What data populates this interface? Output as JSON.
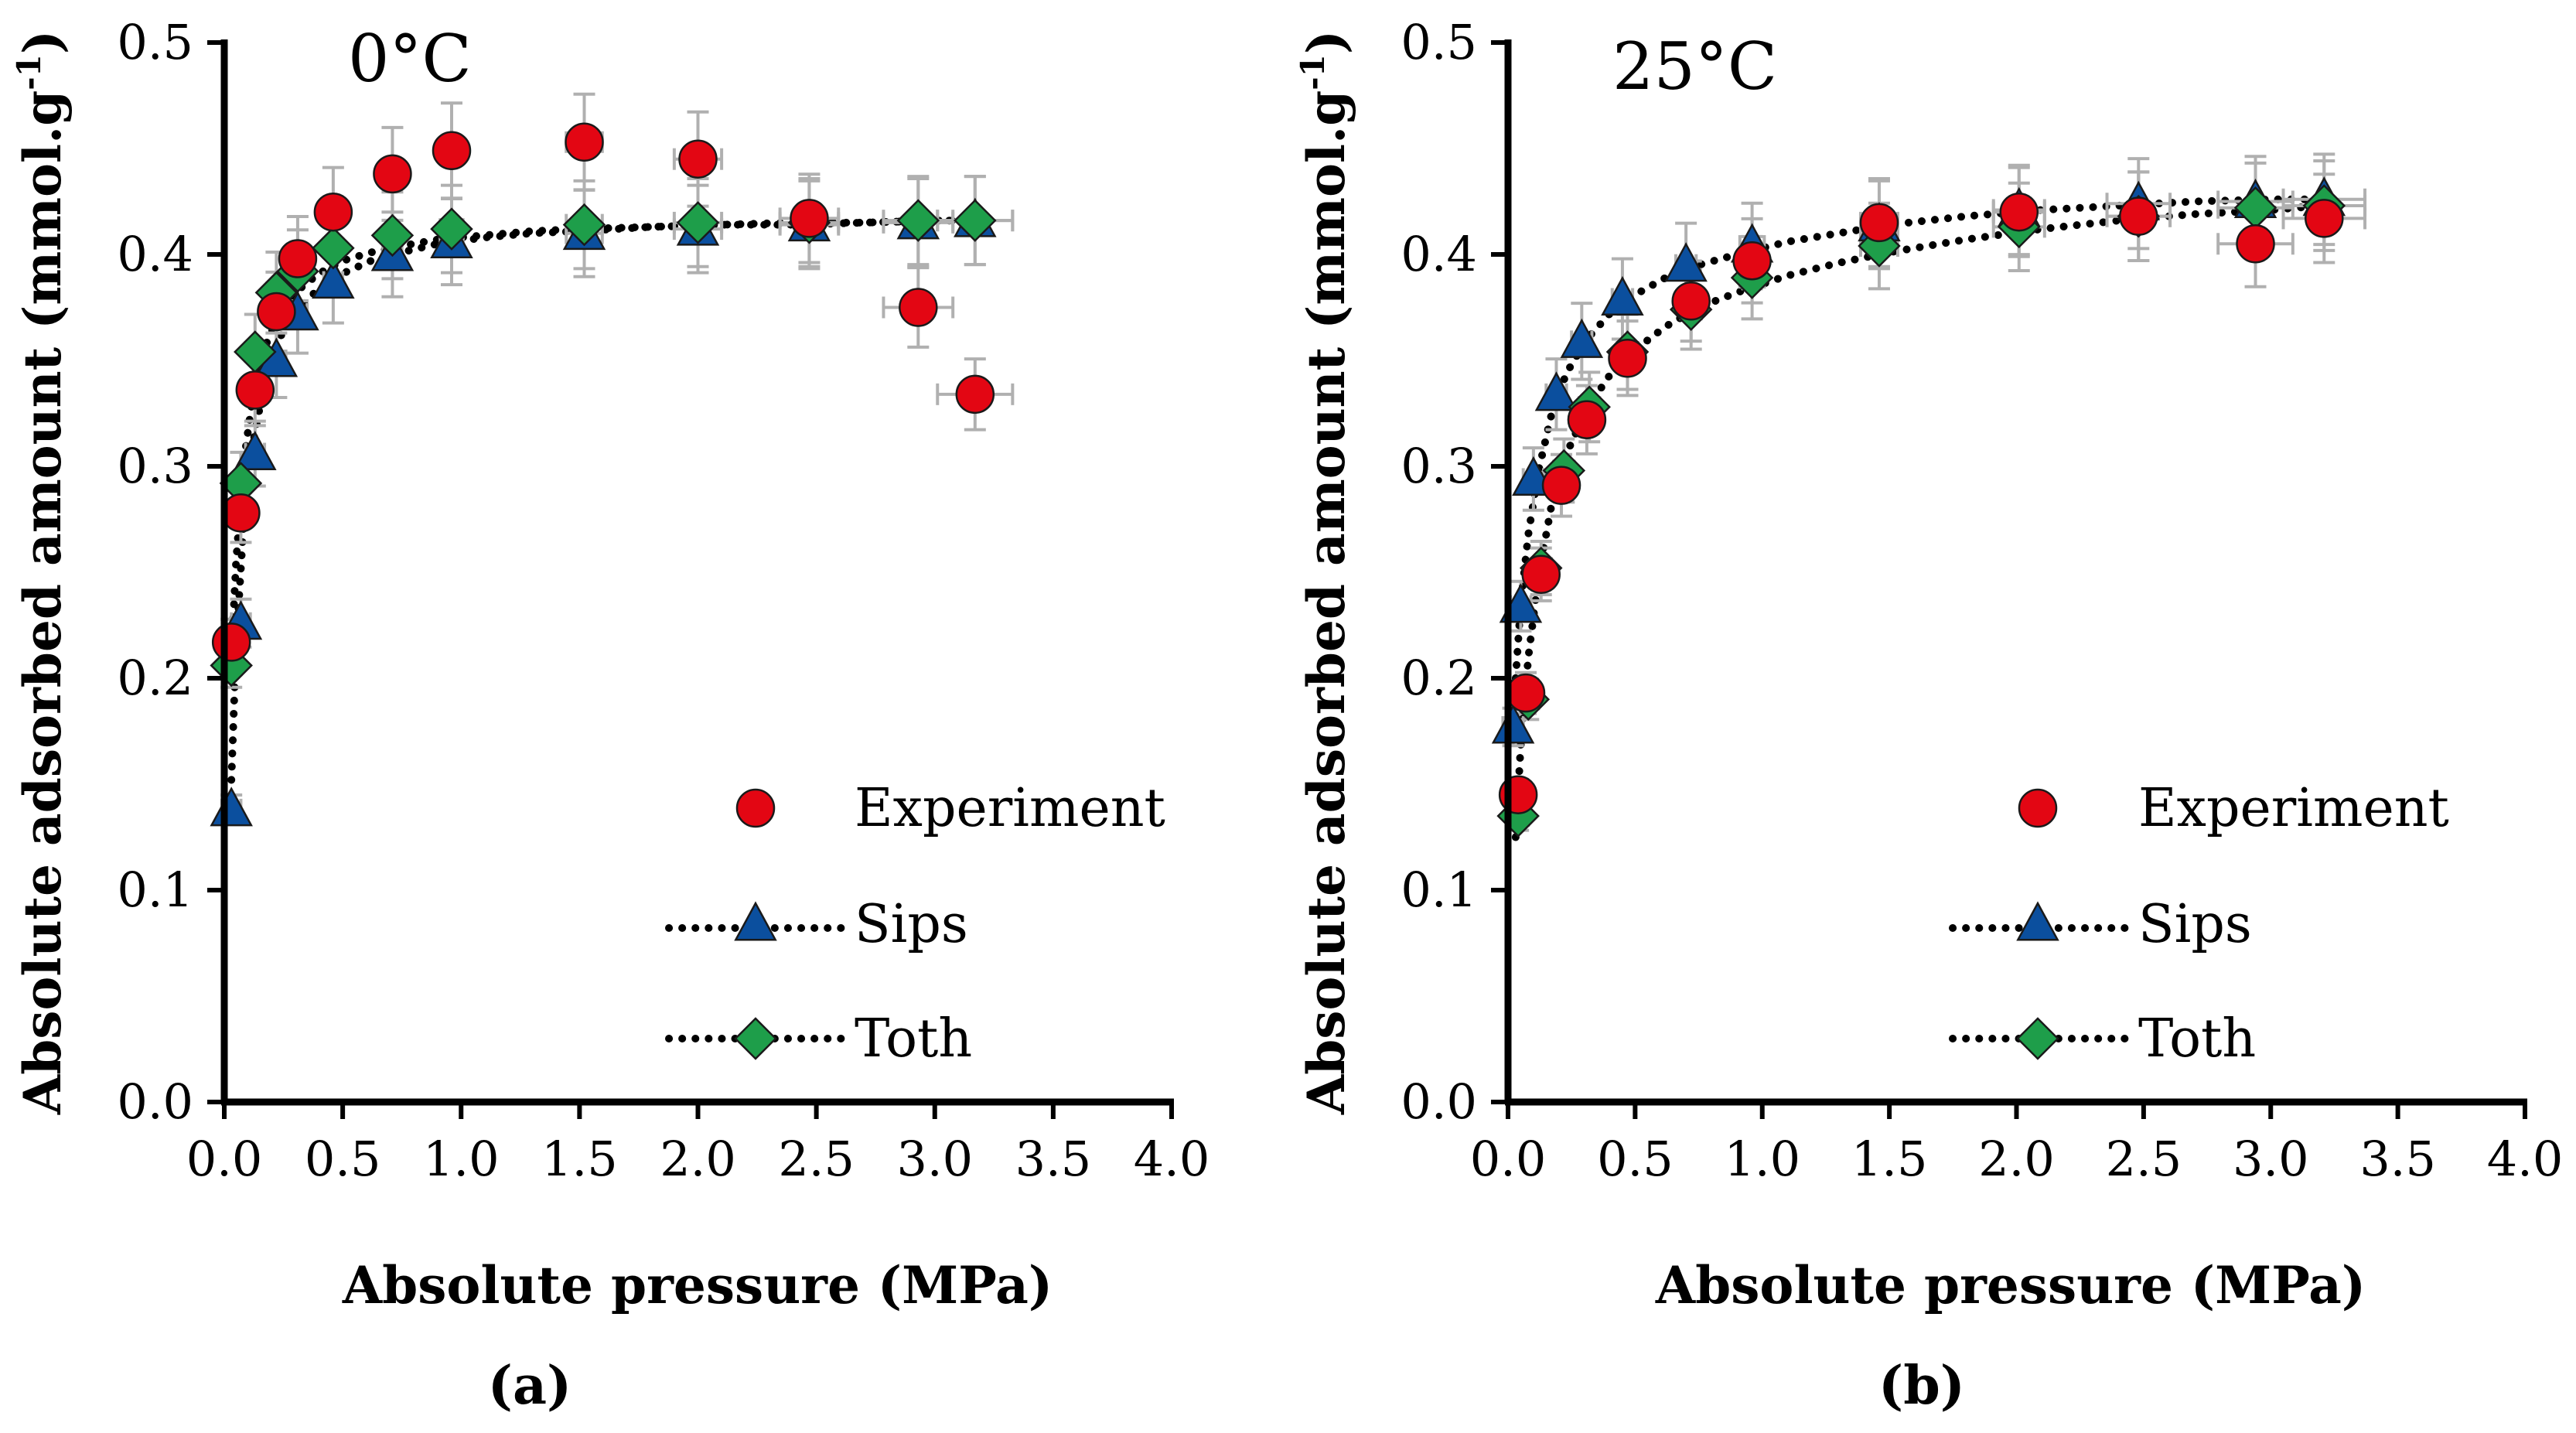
{
  "chart_data": [
    {
      "type": "scatter",
      "panel_label": "(a)",
      "temperature_label": "0°C",
      "xlabel": "Absolute pressure (MPa)",
      "ylabel": "Absolute adsorbed amount (mmol.g",
      "ylabel_sup": "-1",
      "ylabel_close": ")",
      "xlim": [
        0,
        4
      ],
      "ylim": [
        0,
        0.5
      ],
      "xticks": [
        "0.0",
        "0.5",
        "1.0",
        "1.5",
        "2.0",
        "2.5",
        "3.0",
        "3.5",
        "4.0"
      ],
      "yticks": [
        "0.0",
        "0.1",
        "0.2",
        "0.3",
        "0.4",
        "0.5"
      ],
      "legend": [
        "Experiment",
        "Sips",
        "Toth"
      ],
      "series": [
        {
          "name": "Experiment",
          "marker": "circle",
          "color": "#e30613",
          "x": [
            0.03,
            0.07,
            0.13,
            0.22,
            0.31,
            0.46,
            0.71,
            0.96,
            1.52,
            2.0,
            2.47,
            2.93,
            3.17
          ],
          "y": [
            0.217,
            0.278,
            0.336,
            0.373,
            0.398,
            0.42,
            0.438,
            0.449,
            0.453,
            0.445,
            0.417,
            0.375,
            0.334
          ]
        },
        {
          "name": "Sips",
          "marker": "triangle",
          "color": "#0b4f9e",
          "x": [
            0.03,
            0.07,
            0.13,
            0.22,
            0.31,
            0.46,
            0.71,
            0.96,
            1.52,
            2.0,
            2.47,
            2.93,
            3.17
          ],
          "y": [
            0.138,
            0.226,
            0.306,
            0.35,
            0.372,
            0.387,
            0.4,
            0.406,
            0.41,
            0.412,
            0.414,
            0.415,
            0.416
          ]
        },
        {
          "name": "Toth",
          "marker": "diamond",
          "color": "#1e9e4a",
          "x": [
            0.03,
            0.07,
            0.13,
            0.22,
            0.31,
            0.46,
            0.71,
            0.96,
            1.52,
            2.0,
            2.47,
            2.93,
            3.17
          ],
          "y": [
            0.206,
            0.292,
            0.354,
            0.382,
            0.392,
            0.403,
            0.409,
            0.412,
            0.414,
            0.415,
            0.415,
            0.416,
            0.416
          ]
        }
      ],
      "fit_x": [
        0.03,
        0.05,
        0.08,
        0.12,
        0.17,
        0.23,
        0.31,
        0.4,
        0.5,
        0.62,
        0.75,
        0.9,
        1.1,
        1.3,
        1.5,
        1.8,
        2.1,
        2.4,
        2.7,
        3.0,
        3.2
      ],
      "fit_sips": [
        0.152,
        0.215,
        0.27,
        0.31,
        0.34,
        0.36,
        0.374,
        0.384,
        0.391,
        0.397,
        0.401,
        0.405,
        0.408,
        0.41,
        0.411,
        0.413,
        0.414,
        0.414,
        0.415,
        0.416,
        0.416
      ],
      "fit_toth": [
        0.21,
        0.255,
        0.3,
        0.333,
        0.356,
        0.371,
        0.383,
        0.391,
        0.397,
        0.401,
        0.404,
        0.407,
        0.409,
        0.411,
        0.412,
        0.413,
        0.414,
        0.415,
        0.415,
        0.416,
        0.416
      ]
    },
    {
      "type": "scatter",
      "panel_label": "(b)",
      "temperature_label": "25°C",
      "xlabel": "Absolute pressure (MPa)",
      "ylabel": "Absolute adsorbed amount (mmol.g",
      "ylabel_sup": "-1",
      "ylabel_close": ")",
      "xlim": [
        0,
        4
      ],
      "ylim": [
        0,
        0.5
      ],
      "xticks": [
        "0.0",
        "0.5",
        "1.0",
        "1.5",
        "2.0",
        "2.5",
        "3.0",
        "3.5",
        "4.0"
      ],
      "yticks": [
        "0.0",
        "0.1",
        "0.2",
        "0.3",
        "0.4",
        "0.5"
      ],
      "legend": [
        "Experiment",
        "Sips",
        "Toth"
      ],
      "series": [
        {
          "name": "Experiment",
          "marker": "circle",
          "color": "#e30613",
          "x": [
            0.04,
            0.07,
            0.13,
            0.21,
            0.31,
            0.47,
            0.72,
            0.96,
            1.46,
            2.01,
            2.48,
            2.94,
            3.21
          ],
          "y": [
            0.145,
            0.193,
            0.249,
            0.291,
            0.322,
            0.351,
            0.378,
            0.397,
            0.415,
            0.42,
            0.418,
            0.405,
            0.417
          ]
        },
        {
          "name": "Sips",
          "marker": "triangle",
          "color": "#0b4f9e",
          "x": [
            0.02,
            0.05,
            0.1,
            0.19,
            0.29,
            0.45,
            0.7,
            0.96,
            1.46,
            2.01,
            2.48,
            2.94,
            3.21
          ],
          "y": [
            0.177,
            0.234,
            0.294,
            0.334,
            0.359,
            0.379,
            0.395,
            0.404,
            0.414,
            0.421,
            0.424,
            0.425,
            0.426
          ]
        },
        {
          "name": "Toth",
          "marker": "diamond",
          "color": "#1e9e4a",
          "x": [
            0.04,
            0.08,
            0.13,
            0.22,
            0.32,
            0.47,
            0.72,
            0.96,
            1.46,
            2.01,
            2.48,
            2.94,
            3.21
          ],
          "y": [
            0.135,
            0.19,
            0.252,
            0.298,
            0.328,
            0.354,
            0.374,
            0.389,
            0.404,
            0.413,
            0.418,
            0.422,
            0.423
          ]
        }
      ],
      "fit_x": [
        0.03,
        0.05,
        0.08,
        0.12,
        0.17,
        0.23,
        0.31,
        0.4,
        0.5,
        0.62,
        0.75,
        0.9,
        1.1,
        1.3,
        1.5,
        1.8,
        2.1,
        2.4,
        2.7,
        3.0,
        3.2
      ],
      "fit_sips": [
        0.2,
        0.235,
        0.268,
        0.298,
        0.324,
        0.344,
        0.36,
        0.372,
        0.381,
        0.389,
        0.395,
        0.4,
        0.406,
        0.41,
        0.414,
        0.418,
        0.421,
        0.423,
        0.425,
        0.426,
        0.426
      ],
      "fit_toth": [
        0.125,
        0.168,
        0.21,
        0.248,
        0.281,
        0.306,
        0.327,
        0.343,
        0.355,
        0.366,
        0.375,
        0.382,
        0.39,
        0.396,
        0.401,
        0.407,
        0.412,
        0.416,
        0.419,
        0.421,
        0.423
      ]
    }
  ]
}
